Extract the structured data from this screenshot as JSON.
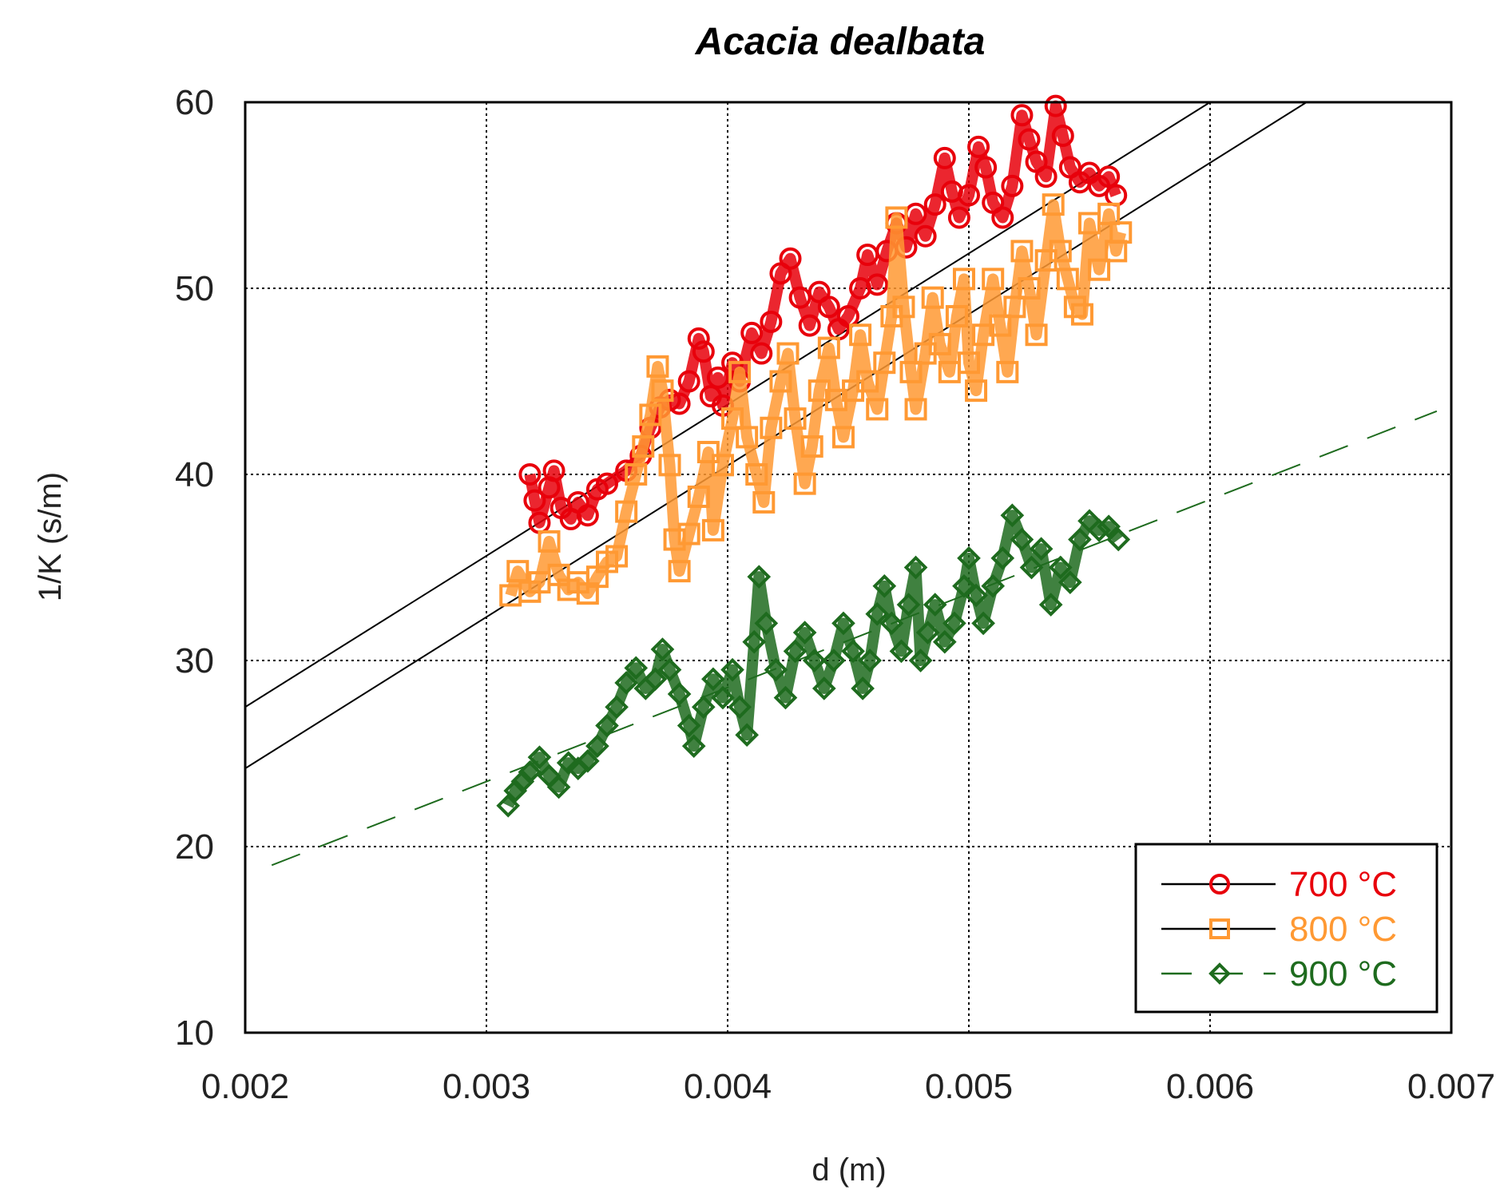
{
  "chart_data": {
    "type": "scatter",
    "title": "Acacia dealbata",
    "xlabel": "d (m)",
    "ylabel": "1/K (s/m)",
    "xlim": [
      0.002,
      0.007
    ],
    "ylim": [
      10,
      60
    ],
    "x_ticks": [
      "0.002",
      "0.003",
      "0.004",
      "0.005",
      "0.006",
      "0.007"
    ],
    "y_ticks": [
      "10",
      "20",
      "30",
      "40",
      "50",
      "60"
    ],
    "grid": true,
    "legend_position": "bottom-right",
    "series": [
      {
        "name": "700 °C",
        "color": "#e8000b",
        "marker": "circle",
        "points": [
          [
            0.00318,
            40.0
          ],
          [
            0.0032,
            38.6
          ],
          [
            0.00322,
            37.4
          ],
          [
            0.00326,
            39.3
          ],
          [
            0.00328,
            40.2
          ],
          [
            0.00331,
            38.2
          ],
          [
            0.00335,
            37.6
          ],
          [
            0.00338,
            38.5
          ],
          [
            0.00342,
            37.8
          ],
          [
            0.00346,
            39.2
          ],
          [
            0.0035,
            39.5
          ],
          [
            0.00358,
            40.2
          ],
          [
            0.00364,
            41.0
          ],
          [
            0.00368,
            42.5
          ],
          [
            0.00372,
            43.6
          ],
          [
            0.00376,
            44.0
          ],
          [
            0.0038,
            43.8
          ],
          [
            0.00384,
            45.0
          ],
          [
            0.00388,
            47.3
          ],
          [
            0.0039,
            46.6
          ],
          [
            0.00393,
            44.2
          ],
          [
            0.00396,
            45.2
          ],
          [
            0.00398,
            43.7
          ],
          [
            0.00402,
            46.0
          ],
          [
            0.00405,
            45.0
          ],
          [
            0.0041,
            47.6
          ],
          [
            0.00414,
            46.5
          ],
          [
            0.00418,
            48.2
          ],
          [
            0.00422,
            50.8
          ],
          [
            0.00426,
            51.6
          ],
          [
            0.0043,
            49.5
          ],
          [
            0.00434,
            48.0
          ],
          [
            0.00438,
            49.8
          ],
          [
            0.00442,
            49.0
          ],
          [
            0.00446,
            47.8
          ],
          [
            0.0045,
            48.5
          ],
          [
            0.00455,
            50.0
          ],
          [
            0.00458,
            51.8
          ],
          [
            0.00462,
            50.2
          ],
          [
            0.00466,
            52.0
          ],
          [
            0.0047,
            53.5
          ],
          [
            0.00474,
            52.2
          ],
          [
            0.00478,
            54.0
          ],
          [
            0.00482,
            52.8
          ],
          [
            0.00486,
            54.5
          ],
          [
            0.0049,
            57.0
          ],
          [
            0.00493,
            55.2
          ],
          [
            0.00496,
            53.8
          ],
          [
            0.005,
            55.0
          ],
          [
            0.00504,
            57.6
          ],
          [
            0.00507,
            56.5
          ],
          [
            0.0051,
            54.6
          ],
          [
            0.00514,
            53.8
          ],
          [
            0.00518,
            55.5
          ],
          [
            0.00522,
            59.3
          ],
          [
            0.00525,
            58.0
          ],
          [
            0.00528,
            56.8
          ],
          [
            0.00532,
            56.0
          ],
          [
            0.00536,
            59.8
          ],
          [
            0.00539,
            58.2
          ],
          [
            0.00542,
            56.5
          ],
          [
            0.00546,
            55.7
          ],
          [
            0.0055,
            56.2
          ],
          [
            0.00554,
            55.5
          ],
          [
            0.00558,
            56.0
          ],
          [
            0.00561,
            55.0
          ]
        ]
      },
      {
        "name": "800 °C",
        "color": "#ff9933",
        "marker": "square",
        "points": [
          [
            0.0031,
            33.5
          ],
          [
            0.00313,
            34.8
          ],
          [
            0.00318,
            33.7
          ],
          [
            0.00322,
            34.2
          ],
          [
            0.00326,
            36.4
          ],
          [
            0.0033,
            34.6
          ],
          [
            0.00334,
            33.8
          ],
          [
            0.00338,
            34.2
          ],
          [
            0.00342,
            33.6
          ],
          [
            0.00346,
            34.5
          ],
          [
            0.0035,
            35.3
          ],
          [
            0.00354,
            35.6
          ],
          [
            0.00358,
            38.0
          ],
          [
            0.00362,
            40.0
          ],
          [
            0.00365,
            41.5
          ],
          [
            0.00368,
            43.2
          ],
          [
            0.00371,
            45.8
          ],
          [
            0.00373,
            44.5
          ],
          [
            0.00376,
            40.5
          ],
          [
            0.00378,
            36.5
          ],
          [
            0.0038,
            34.8
          ],
          [
            0.00384,
            36.8
          ],
          [
            0.00388,
            38.8
          ],
          [
            0.00392,
            41.2
          ],
          [
            0.00394,
            37.0
          ],
          [
            0.00398,
            40.5
          ],
          [
            0.00402,
            43.0
          ],
          [
            0.00405,
            45.5
          ],
          [
            0.00408,
            42.0
          ],
          [
            0.00412,
            40.0
          ],
          [
            0.00415,
            38.5
          ],
          [
            0.00418,
            42.5
          ],
          [
            0.00422,
            45.0
          ],
          [
            0.00425,
            46.5
          ],
          [
            0.00428,
            43.0
          ],
          [
            0.00432,
            39.5
          ],
          [
            0.00435,
            41.5
          ],
          [
            0.00438,
            44.5
          ],
          [
            0.00442,
            46.8
          ],
          [
            0.00445,
            44.0
          ],
          [
            0.00448,
            42.0
          ],
          [
            0.00452,
            44.5
          ],
          [
            0.00455,
            47.5
          ],
          [
            0.00458,
            45.0
          ],
          [
            0.00462,
            43.5
          ],
          [
            0.00465,
            46.0
          ],
          [
            0.00468,
            48.5
          ],
          [
            0.0047,
            53.8
          ],
          [
            0.00473,
            49.0
          ],
          [
            0.00476,
            45.5
          ],
          [
            0.00478,
            43.5
          ],
          [
            0.00482,
            46.5
          ],
          [
            0.00485,
            49.5
          ],
          [
            0.00488,
            47.0
          ],
          [
            0.00492,
            45.5
          ],
          [
            0.00495,
            48.5
          ],
          [
            0.00498,
            50.5
          ],
          [
            0.005,
            46.0
          ],
          [
            0.00503,
            44.5
          ],
          [
            0.00506,
            47.5
          ],
          [
            0.0051,
            50.5
          ],
          [
            0.00513,
            48.0
          ],
          [
            0.00516,
            45.5
          ],
          [
            0.00519,
            49.0
          ],
          [
            0.00522,
            52.0
          ],
          [
            0.00525,
            50.0
          ],
          [
            0.00528,
            47.5
          ],
          [
            0.00532,
            51.5
          ],
          [
            0.00535,
            54.5
          ],
          [
            0.00538,
            52.0
          ],
          [
            0.00541,
            50.5
          ],
          [
            0.00544,
            49.0
          ],
          [
            0.00547,
            48.6
          ],
          [
            0.0055,
            53.5
          ],
          [
            0.00554,
            51.0
          ],
          [
            0.00558,
            54.0
          ],
          [
            0.00561,
            52.0
          ],
          [
            0.00563,
            53.0
          ]
        ]
      },
      {
        "name": "900 °C",
        "color": "#1e6b1e",
        "marker": "diamond",
        "points": [
          [
            0.00309,
            22.2
          ],
          [
            0.00312,
            23.0
          ],
          [
            0.00315,
            23.5
          ],
          [
            0.00318,
            24.0
          ],
          [
            0.00322,
            24.8
          ],
          [
            0.00326,
            23.8
          ],
          [
            0.0033,
            23.2
          ],
          [
            0.00334,
            24.5
          ],
          [
            0.00338,
            24.2
          ],
          [
            0.00342,
            24.6
          ],
          [
            0.00346,
            25.4
          ],
          [
            0.0035,
            26.5
          ],
          [
            0.00354,
            27.5
          ],
          [
            0.00358,
            28.8
          ],
          [
            0.00362,
            29.6
          ],
          [
            0.00366,
            28.5
          ],
          [
            0.0037,
            29.0
          ],
          [
            0.00373,
            30.6
          ],
          [
            0.00376,
            29.5
          ],
          [
            0.0038,
            28.2
          ],
          [
            0.00384,
            26.5
          ],
          [
            0.00386,
            25.4
          ],
          [
            0.0039,
            27.5
          ],
          [
            0.00394,
            29.0
          ],
          [
            0.00398,
            28.0
          ],
          [
            0.00402,
            29.5
          ],
          [
            0.00405,
            27.5
          ],
          [
            0.00408,
            26.0
          ],
          [
            0.00411,
            31.0
          ],
          [
            0.00413,
            34.5
          ],
          [
            0.00416,
            32.0
          ],
          [
            0.0042,
            29.5
          ],
          [
            0.00424,
            28.0
          ],
          [
            0.00428,
            30.5
          ],
          [
            0.00432,
            31.5
          ],
          [
            0.00436,
            30.0
          ],
          [
            0.0044,
            28.5
          ],
          [
            0.00444,
            30.0
          ],
          [
            0.00448,
            32.0
          ],
          [
            0.00452,
            30.5
          ],
          [
            0.00456,
            28.5
          ],
          [
            0.00459,
            30.0
          ],
          [
            0.00462,
            32.5
          ],
          [
            0.00465,
            34.0
          ],
          [
            0.00468,
            32.0
          ],
          [
            0.00472,
            30.5
          ],
          [
            0.00475,
            33.0
          ],
          [
            0.00478,
            35.0
          ],
          [
            0.0048,
            30.0
          ],
          [
            0.00483,
            31.5
          ],
          [
            0.00486,
            33.0
          ],
          [
            0.0049,
            31.0
          ],
          [
            0.00494,
            32.0
          ],
          [
            0.00498,
            34.0
          ],
          [
            0.005,
            35.5
          ],
          [
            0.00503,
            33.5
          ],
          [
            0.00506,
            32.0
          ],
          [
            0.0051,
            34.0
          ],
          [
            0.00514,
            35.5
          ],
          [
            0.00518,
            37.8
          ],
          [
            0.00522,
            36.5
          ],
          [
            0.00526,
            35.0
          ],
          [
            0.0053,
            36.0
          ],
          [
            0.00534,
            33.0
          ],
          [
            0.00538,
            35.0
          ],
          [
            0.00542,
            34.2
          ],
          [
            0.00546,
            36.5
          ],
          [
            0.0055,
            37.5
          ],
          [
            0.00554,
            37.0
          ],
          [
            0.00558,
            37.2
          ],
          [
            0.00562,
            36.5
          ]
        ]
      }
    ],
    "fit_lines": [
      {
        "series": "700 °C",
        "style": "solid",
        "color": "#000000",
        "x": [
          0.002,
          0.006
        ],
        "y": [
          27.5,
          60.0
        ]
      },
      {
        "series": "800 °C",
        "style": "solid",
        "color": "#000000",
        "x": [
          0.002,
          0.0064
        ],
        "y": [
          24.2,
          60.0
        ]
      },
      {
        "series": "900 °C",
        "style": "dashed",
        "color": "#1e6b1e",
        "x": [
          0.00211,
          0.00694
        ],
        "y": [
          19.0,
          43.4
        ]
      }
    ]
  }
}
